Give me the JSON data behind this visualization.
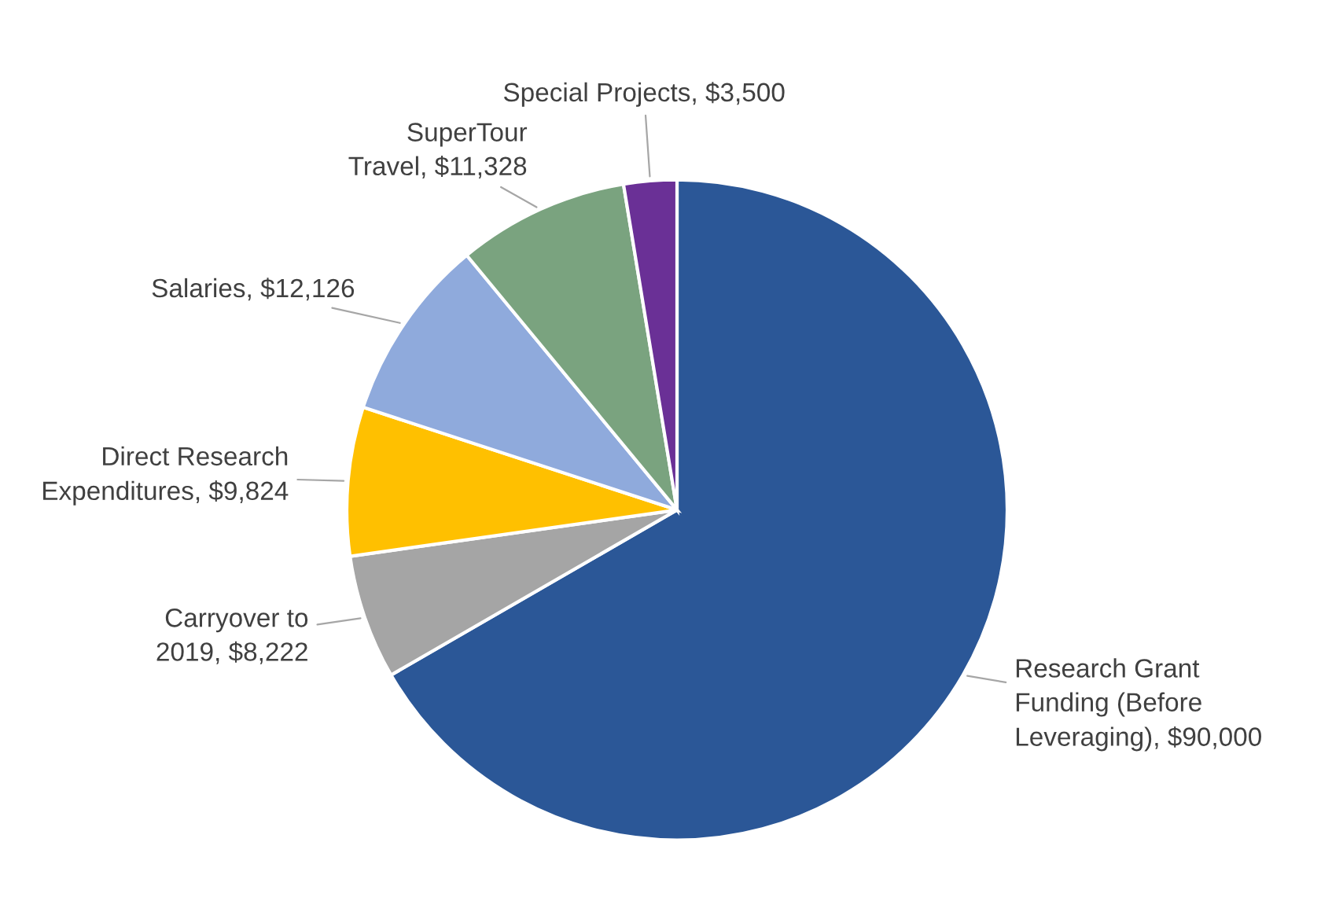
{
  "chart_data": {
    "type": "pie",
    "categories": [
      "Research Grant Funding (Before Leveraging)",
      "Carryover to 2019",
      "Direct Research Expenditures",
      "Salaries",
      "SuperTour Travel",
      "Special Projects"
    ],
    "values": [
      90000,
      8222,
      9824,
      12126,
      11328,
      3500
    ],
    "value_labels": [
      "$90,000",
      "$8,222",
      "$9,824",
      "$12,126",
      "$11,328",
      "$3,500"
    ],
    "colors": [
      "#2b5797",
      "#a5a5a5",
      "#ffc000",
      "#8faadc",
      "#7aa37f",
      "#6a3096"
    ],
    "legend": false
  }
}
